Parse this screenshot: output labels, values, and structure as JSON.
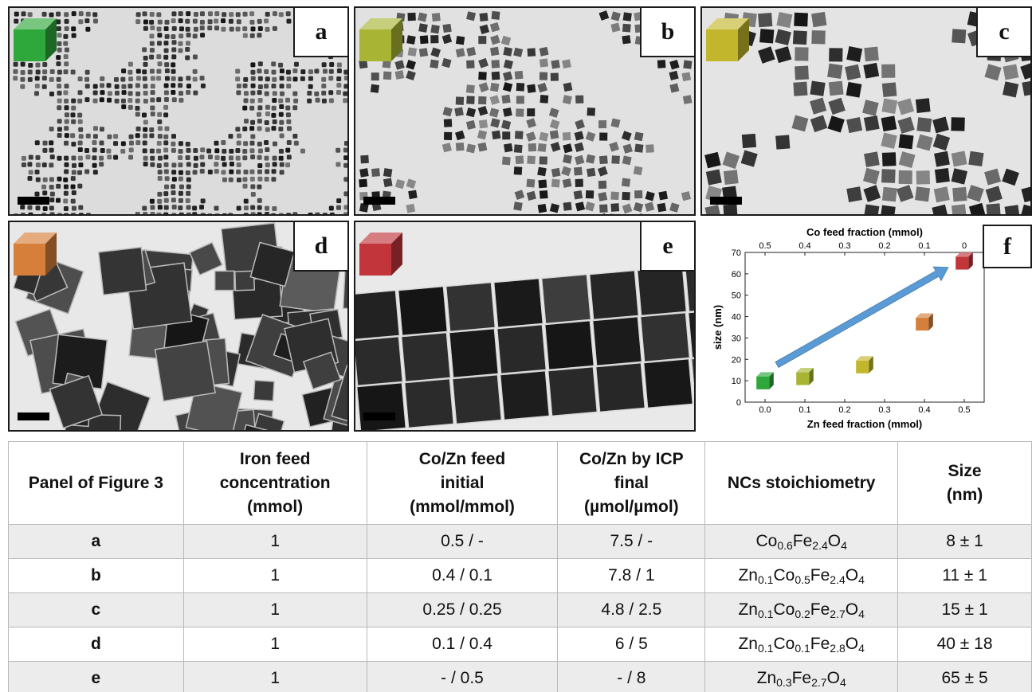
{
  "panels": [
    {
      "letter": "a",
      "cube_color": "#2fa83b",
      "tex": {
        "type": "dots",
        "density": 0.85,
        "seed": 11,
        "bg": "#dcdcdc"
      }
    },
    {
      "letter": "b",
      "cube_color": "#a8b534",
      "tex": {
        "type": "small-cubes",
        "density": 0.5,
        "seed": 23,
        "bg": "#e1e1e1"
      }
    },
    {
      "letter": "c",
      "cube_color": "#c2b62c",
      "tex": {
        "type": "medium-cubes",
        "density": 0.55,
        "seed": 37,
        "bg": "#e4e4e4"
      }
    },
    {
      "letter": "d",
      "cube_color": "#d57f3a",
      "tex": {
        "type": "large-cubes",
        "density": 0.5,
        "seed": 41,
        "bg": "#e8e8e8"
      }
    },
    {
      "letter": "e",
      "cube_color": "#c2363b",
      "tex": {
        "type": "grid-cubes",
        "density": 1,
        "seed": 53,
        "bg": "#e9e9e9"
      }
    }
  ],
  "chart": {
    "letter": "f"
  },
  "chart_data": {
    "type": "scatter",
    "xlabel": "Zn feed fraction (mmol)",
    "x2label": "Co feed fraction (mmol)",
    "ylabel": "size (nm)",
    "xlim": [
      -0.05,
      0.55
    ],
    "ylim": [
      0,
      70
    ],
    "x_ticks": [
      0.0,
      0.1,
      0.2,
      0.3,
      0.4,
      0.5
    ],
    "x_tick_labels": [
      "0.0",
      "0.1",
      "0.2",
      "0.3",
      "0.4",
      "0.5"
    ],
    "x2_ticks": [
      0.0,
      0.1,
      0.2,
      0.3,
      0.4,
      0.5
    ],
    "x2_tick_labels": [
      "0.5",
      "0.4",
      "0.3",
      "0.2",
      "0.1",
      "0"
    ],
    "y_ticks": [
      0,
      10,
      20,
      30,
      40,
      50,
      60,
      70
    ],
    "points": [
      {
        "x": 0.0,
        "y": 10,
        "color": "#2fa83b"
      },
      {
        "x": 0.1,
        "y": 12,
        "color": "#a8b534"
      },
      {
        "x": 0.25,
        "y": 17.5,
        "color": "#c2b62c"
      },
      {
        "x": 0.4,
        "y": 37.5,
        "color": "#d57f3a"
      },
      {
        "x": 0.5,
        "y": 66,
        "color": "#c2363b"
      }
    ],
    "arrow": {
      "from": [
        0.03,
        17.5
      ],
      "to": [
        0.46,
        63
      ],
      "color": "#5a9bd5"
    }
  },
  "table": {
    "headers": [
      {
        "lines": [
          "Panel of Figure 3"
        ]
      },
      {
        "lines": [
          "Iron feed",
          "concentration",
          "(mmol)"
        ]
      },
      {
        "lines": [
          "Co/Zn feed",
          "initial",
          "(mmol/mmol)"
        ]
      },
      {
        "lines": [
          "Co/Zn by ICP",
          "final",
          "(µmol/µmol)"
        ]
      },
      {
        "lines": [
          "NCs stoichiometry"
        ]
      },
      {
        "lines": [
          "Size",
          "(nm)"
        ]
      }
    ],
    "rows": [
      {
        "panel": "a",
        "iron": "1",
        "feed": "0.5 / -",
        "icp": "7.5 / -",
        "stoich": [
          [
            "Co",
            "0.6"
          ],
          [
            "Fe",
            "2.4"
          ],
          [
            "O",
            "4"
          ]
        ],
        "size": "8 ± 1"
      },
      {
        "panel": "b",
        "iron": "1",
        "feed": "0.4 / 0.1",
        "icp": "7.8 / 1",
        "stoich": [
          [
            "Zn",
            "0.1"
          ],
          [
            "Co",
            "0.5"
          ],
          [
            "Fe",
            "2.4"
          ],
          [
            "O",
            "4"
          ]
        ],
        "size": "11 ± 1"
      },
      {
        "panel": "c",
        "iron": "1",
        "feed": "0.25 / 0.25",
        "icp": "4.8 / 2.5",
        "stoich": [
          [
            "Zn",
            "0.1"
          ],
          [
            "Co",
            "0.2"
          ],
          [
            "Fe",
            "2.7"
          ],
          [
            "O",
            "4"
          ]
        ],
        "size": "15 ± 1"
      },
      {
        "panel": "d",
        "iron": "1",
        "feed": "0.1 / 0.4",
        "icp": "6 / 5",
        "stoich": [
          [
            "Zn",
            "0.1"
          ],
          [
            "Co",
            "0.1"
          ],
          [
            "Fe",
            "2.8"
          ],
          [
            "O",
            "4"
          ]
        ],
        "size": "40 ± 18"
      },
      {
        "panel": "e",
        "iron": "1",
        "feed": "- / 0.5",
        "icp": "- / 8",
        "stoich": [
          [
            "Zn",
            "0.3"
          ],
          [
            "Fe",
            "2.7"
          ],
          [
            "O",
            "4"
          ]
        ],
        "size": "65 ± 5"
      }
    ]
  }
}
